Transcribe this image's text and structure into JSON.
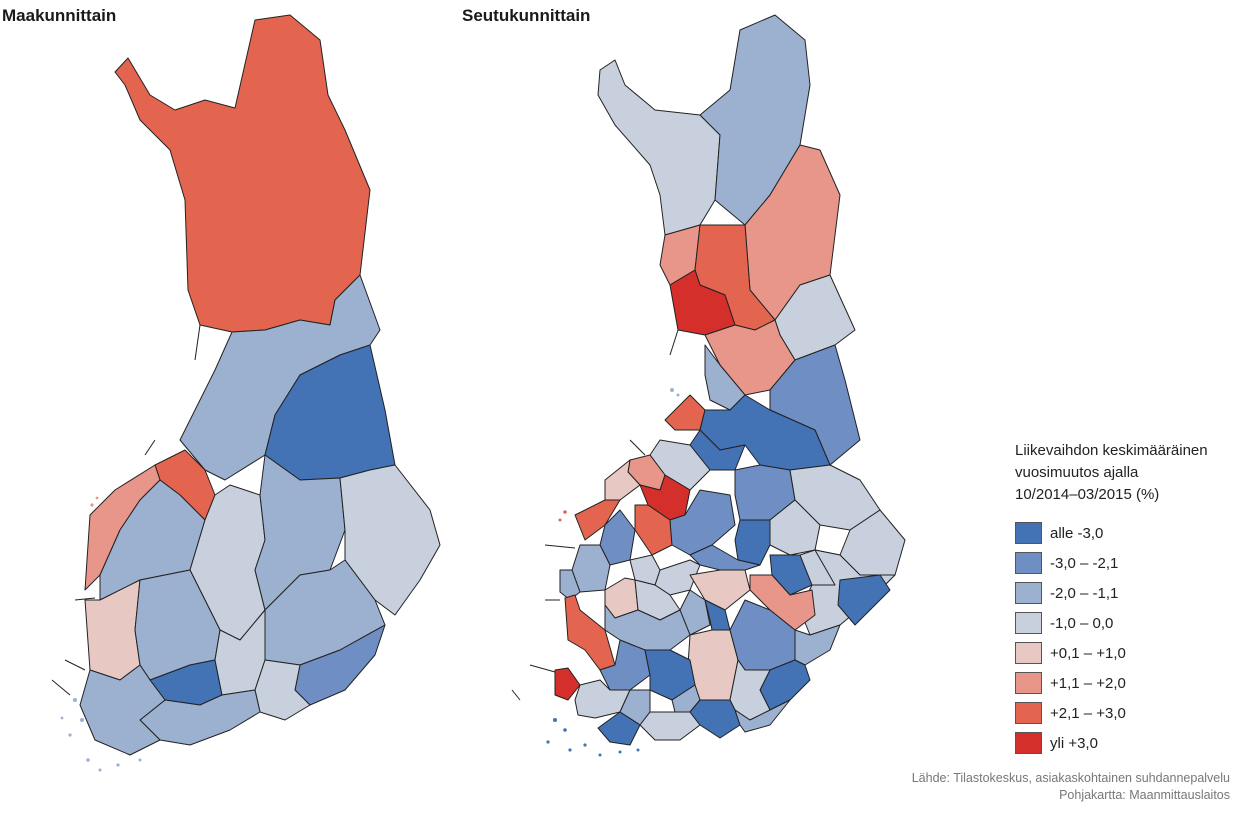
{
  "titles": {
    "left": "Maakunnittain",
    "right": "Seutukunnittain"
  },
  "legend": {
    "title_lines": [
      "Liikevaihdon keskimääräinen",
      "vuosimuutos ajalla",
      "10/2014–03/2015 (%)"
    ],
    "classes": [
      {
        "label": "alle -3,0",
        "color": "#4372b5"
      },
      {
        "label": "-3,0 – -2,1",
        "color": "#6f8fc4"
      },
      {
        "label": "-2,0 – -1,1",
        "color": "#9cb0d0"
      },
      {
        "label": "-1,0 – 0,0",
        "color": "#c9d0dd"
      },
      {
        "label": "+0,1 – +1,0",
        "color": "#e8c8c3"
      },
      {
        "label": "+1,1 – +2,0",
        "color": "#e8968a"
      },
      {
        "label": "+2,1 – +3,0",
        "color": "#e4654f"
      },
      {
        "label": "yli +3,0",
        "color": "#d42f2b"
      }
    ]
  },
  "source": {
    "line1": "Lähde: Tilastokeskus, asiakaskohtainen suhdannepalvelu",
    "line2": "Pohjakartta: Maanmittauslaitos"
  }
}
